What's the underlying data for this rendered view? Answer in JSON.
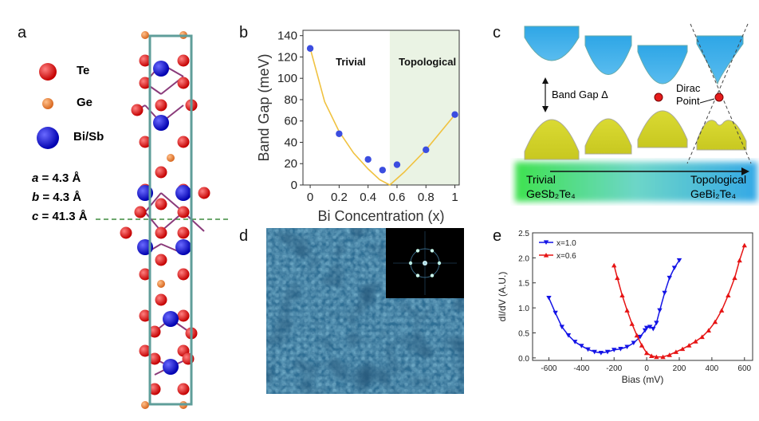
{
  "panel_labels": {
    "a": "a",
    "b": "b",
    "c": "c",
    "d": "d",
    "e": "e"
  },
  "panel_a": {
    "legend": [
      {
        "name": "Te",
        "color": "#e51c1c"
      },
      {
        "name": "Ge",
        "color": "#f0843c"
      },
      {
        "name": "Bi/Sb",
        "color": "#1414d2"
      }
    ],
    "lattice": {
      "a": {
        "symbol": "a",
        "value": " = 4.3 Å"
      },
      "b": {
        "symbol": "b",
        "value": " = 4.3 Å"
      },
      "c": {
        "symbol": "c",
        "value": " = 41.3 Å"
      }
    },
    "colors": {
      "cell": "#5f9e9a",
      "dash": "#3e8b3e"
    }
  },
  "panel_b": {
    "region_labels": {
      "trivial": "Trivial",
      "topological": "Topological"
    },
    "chart_data": {
      "type": "scatter",
      "xlabel": "Bi Concentration (x)",
      "ylabel": "Band Gap (meV)",
      "xlim": [
        -0.05,
        1.03
      ],
      "ylim": [
        0,
        145
      ],
      "xticks": [
        "0",
        "0.2",
        "0.4",
        "0.6",
        "0.8",
        "1"
      ],
      "yticks": [
        "0",
        "20",
        "40",
        "60",
        "80",
        "100",
        "120",
        "140"
      ],
      "points": [
        {
          "x": 0.0,
          "y": 128
        },
        {
          "x": 0.2,
          "y": 48
        },
        {
          "x": 0.4,
          "y": 24
        },
        {
          "x": 0.5,
          "y": 14
        },
        {
          "x": 0.6,
          "y": 19
        },
        {
          "x": 0.8,
          "y": 33
        },
        {
          "x": 1.0,
          "y": 66
        }
      ],
      "fit_curve": [
        [
          0,
          128
        ],
        [
          0.1,
          78
        ],
        [
          0.2,
          50
        ],
        [
          0.3,
          30
        ],
        [
          0.4,
          15
        ],
        [
          0.48,
          5
        ],
        [
          0.55,
          0
        ],
        [
          0.65,
          12
        ],
        [
          0.8,
          33
        ],
        [
          1.0,
          66
        ]
      ],
      "topological_region_start": 0.55,
      "colors": {
        "points": "#3b4de0",
        "fit": "#f0c240",
        "region": "#eaf3e4"
      }
    }
  },
  "panel_c": {
    "band_gap_label": "Band Gap Δ",
    "dirac_label_1": "Dirac",
    "dirac_label_2": "Point",
    "trivial_label": "Trivial",
    "topological_label": "Topological",
    "compound_left": "GeSb₂Te₄",
    "compound_right": "GeBi₂Te₄",
    "colors": {
      "conduction": "#3aa8e0",
      "valence": "#d8d830",
      "dirac": "#e51c1c"
    }
  },
  "panel_d": {
    "description_none": ""
  },
  "panel_e": {
    "chart_data": {
      "type": "line",
      "xlabel": "Bias (mV)",
      "ylabel": "dI/dV (A.U.)",
      "xlim": [
        -700,
        650
      ],
      "ylim": [
        -0.05,
        2.5
      ],
      "xticks": [
        "-600",
        "-400",
        "-200",
        "0",
        "200",
        "400",
        "600"
      ],
      "yticks": [
        "0.0",
        "0.5",
        "1.0",
        "1.5",
        "2.0",
        "2.5"
      ],
      "series": [
        {
          "name": "x=1.0",
          "color": "#1414e6",
          "marker": "triangle-down",
          "points": [
            [
              -600,
              1.2
            ],
            [
              -560,
              0.9
            ],
            [
              -520,
              0.62
            ],
            [
              -480,
              0.45
            ],
            [
              -440,
              0.32
            ],
            [
              -400,
              0.24
            ],
            [
              -360,
              0.17
            ],
            [
              -320,
              0.12
            ],
            [
              -280,
              0.1
            ],
            [
              -240,
              0.12
            ],
            [
              -200,
              0.16
            ],
            [
              -160,
              0.18
            ],
            [
              -120,
              0.22
            ],
            [
              -80,
              0.3
            ],
            [
              -40,
              0.42
            ],
            [
              -10,
              0.55
            ],
            [
              0,
              0.6
            ],
            [
              20,
              0.62
            ],
            [
              40,
              0.58
            ],
            [
              60,
              0.7
            ],
            [
              80,
              0.95
            ],
            [
              110,
              1.3
            ],
            [
              140,
              1.6
            ],
            [
              170,
              1.8
            ],
            [
              200,
              1.95
            ]
          ]
        },
        {
          "name": "x=0.6",
          "color": "#e61414",
          "marker": "triangle-up",
          "points": [
            [
              -200,
              1.85
            ],
            [
              -180,
              1.6
            ],
            [
              -150,
              1.25
            ],
            [
              -120,
              0.95
            ],
            [
              -90,
              0.68
            ],
            [
              -60,
              0.45
            ],
            [
              -30,
              0.25
            ],
            [
              0,
              0.1
            ],
            [
              30,
              0.04
            ],
            [
              60,
              0.02
            ],
            [
              100,
              0.02
            ],
            [
              140,
              0.06
            ],
            [
              180,
              0.12
            ],
            [
              220,
              0.18
            ],
            [
              260,
              0.25
            ],
            [
              300,
              0.33
            ],
            [
              340,
              0.42
            ],
            [
              380,
              0.55
            ],
            [
              420,
              0.72
            ],
            [
              460,
              0.95
            ],
            [
              500,
              1.25
            ],
            [
              540,
              1.6
            ],
            [
              570,
              1.95
            ],
            [
              600,
              2.25
            ]
          ]
        }
      ]
    }
  }
}
